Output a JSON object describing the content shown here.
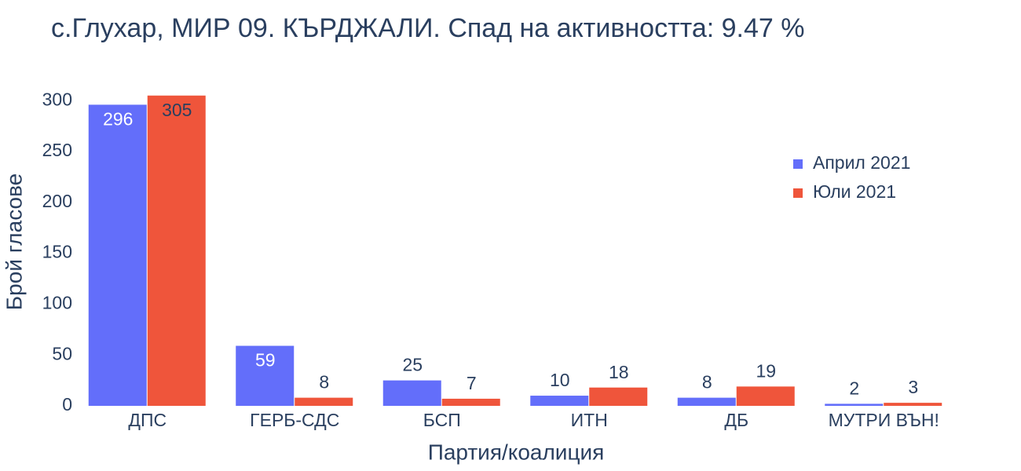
{
  "chart_data": {
    "type": "bar",
    "title": "с.Глухар, МИР 09. КЪРДЖАЛИ. Спад на активността: 9.47  %",
    "x_label": "Партия/коалиция",
    "y_label": "Брой гласове",
    "categories": [
      "ДПС",
      "ГЕРБ-СДС",
      "БСП",
      "ИТН",
      "ДБ",
      "МУТРИ ВЪН!"
    ],
    "series": [
      {
        "name": "Април 2021",
        "color": "#636efa",
        "values": [
          296,
          59,
          25,
          10,
          8,
          2
        ]
      },
      {
        "name": "Юли 2021",
        "color": "#ef553b",
        "values": [
          305,
          8,
          7,
          18,
          19,
          3
        ]
      }
    ],
    "ylim": [
      0,
      321
    ],
    "yticks": [
      0,
      50,
      100,
      150,
      200,
      250,
      300
    ],
    "legend": "top-right"
  }
}
